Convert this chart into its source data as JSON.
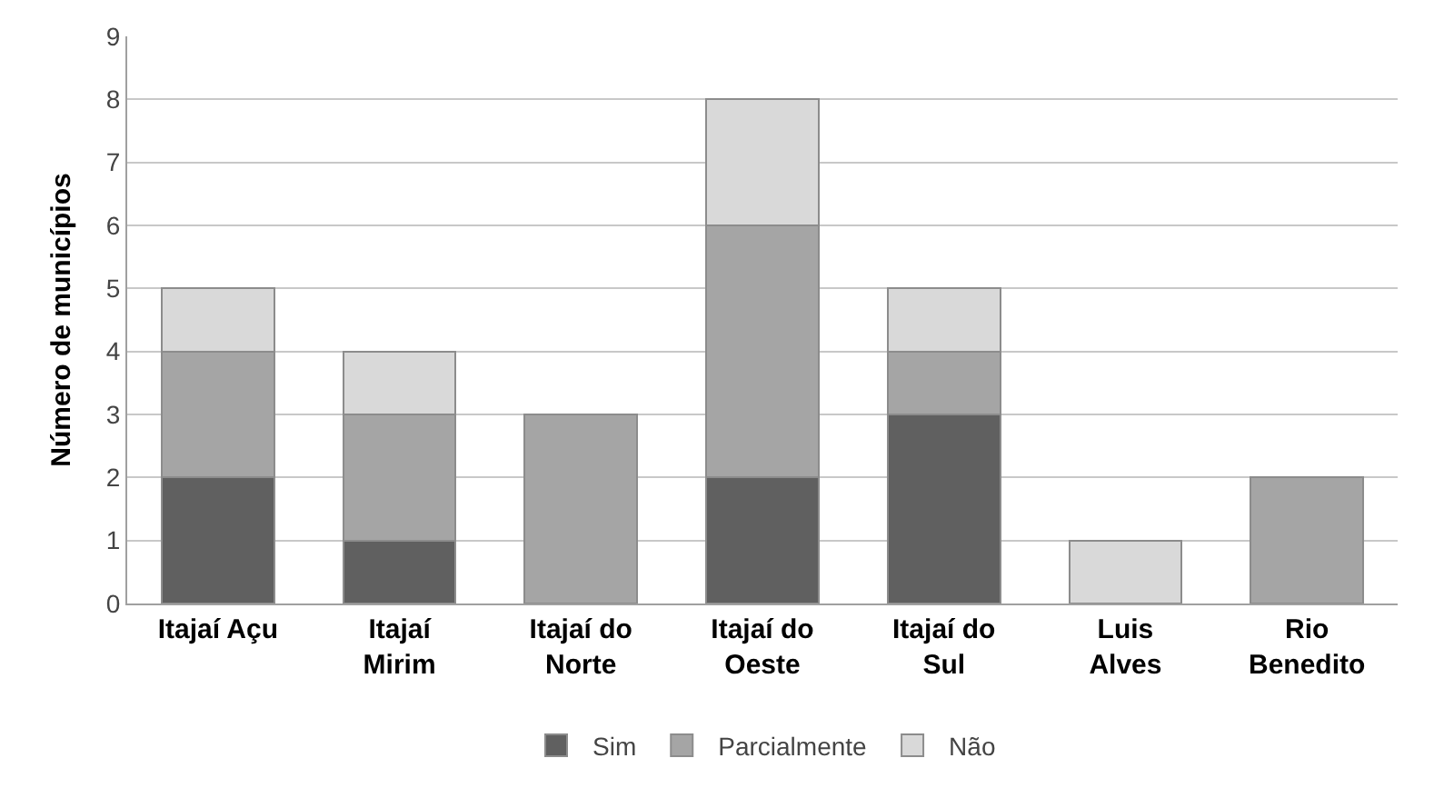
{
  "chart_data": {
    "type": "bar",
    "stacked": true,
    "ylabel": "Número de municípios",
    "categories": [
      "Itajaí Açu",
      "Itajaí\nMirim",
      "Itajaí do\nNorte",
      "Itajaí do\nOeste",
      "Itajaí do\nSul",
      "Luis\nAlves",
      "Rio\nBenedito"
    ],
    "series": [
      {
        "name": "Sim",
        "color": "#606060",
        "values": [
          2,
          1,
          0,
          2,
          3,
          0,
          0
        ]
      },
      {
        "name": "Parcialmente",
        "color": "#a5a5a5",
        "values": [
          2,
          2,
          3,
          4,
          1,
          0,
          2
        ]
      },
      {
        "name": "Não",
        "color": "#d9d9d9",
        "values": [
          1,
          1,
          0,
          2,
          1,
          1,
          0
        ]
      }
    ],
    "ylim": [
      0,
      9
    ],
    "yticks": [
      0,
      1,
      2,
      3,
      4,
      5,
      6,
      7,
      8,
      9
    ],
    "grid": "y",
    "legend": "bottom"
  }
}
